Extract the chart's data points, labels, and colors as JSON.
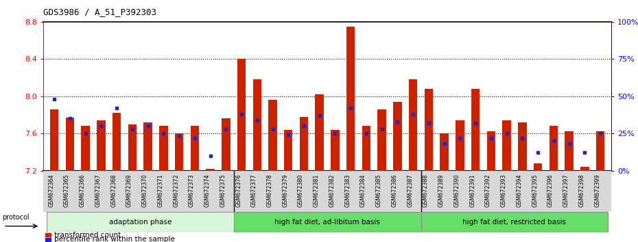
{
  "title": "GDS3986 / A_51_P392303",
  "samples": [
    "GSM672364",
    "GSM672365",
    "GSM672366",
    "GSM672367",
    "GSM672368",
    "GSM672369",
    "GSM672370",
    "GSM672371",
    "GSM672372",
    "GSM672373",
    "GSM672374",
    "GSM672375",
    "GSM672376",
    "GSM672377",
    "GSM672378",
    "GSM672379",
    "GSM672380",
    "GSM672381",
    "GSM672382",
    "GSM672383",
    "GSM672384",
    "GSM672385",
    "GSM672386",
    "GSM672387",
    "GSM672388",
    "GSM672389",
    "GSM672390",
    "GSM672391",
    "GSM672392",
    "GSM672393",
    "GSM672394",
    "GSM672395",
    "GSM672396",
    "GSM672397",
    "GSM672398",
    "GSM672399"
  ],
  "bar_values": [
    7.86,
    7.77,
    7.68,
    7.74,
    7.82,
    7.7,
    7.72,
    7.68,
    7.6,
    7.68,
    7.22,
    7.76,
    8.4,
    8.18,
    7.96,
    7.64,
    7.78,
    8.02,
    7.64,
    8.75,
    7.68,
    7.86,
    7.94,
    8.18,
    8.08,
    7.6,
    7.74,
    8.08,
    7.62,
    7.74,
    7.72,
    7.28,
    7.68,
    7.62,
    7.24,
    7.62
  ],
  "percentile_values": [
    48,
    35,
    25,
    30,
    42,
    28,
    30,
    25,
    23,
    22,
    10,
    28,
    38,
    34,
    28,
    24,
    30,
    37,
    25,
    42,
    25,
    28,
    33,
    38,
    32,
    18,
    22,
    32,
    22,
    25,
    22,
    12,
    20,
    18,
    12,
    25
  ],
  "groups": [
    {
      "label": "adaptation phase",
      "start": 0,
      "end": 12
    },
    {
      "label": "high fat diet, ad-libitum basis",
      "start": 12,
      "end": 24
    },
    {
      "label": "high fat diet, restricted basis",
      "start": 24,
      "end": 36
    }
  ],
  "group_colors": [
    "#d8f5d8",
    "#66dd66",
    "#66dd66"
  ],
  "ylim_left": [
    7.2,
    8.8
  ],
  "ylim_right": [
    0,
    100
  ],
  "yticks_left": [
    7.2,
    7.6,
    8.0,
    8.4,
    8.8
  ],
  "yticks_right": [
    0,
    25,
    50,
    75,
    100
  ],
  "ytick_labels_right": [
    "0%",
    "25%",
    "50%",
    "75%",
    "100%"
  ],
  "bar_color": "#cc2200",
  "dot_color": "#2222cc",
  "bar_width": 0.55,
  "baseline": 7.2,
  "legend_items": [
    {
      "color": "#cc2200",
      "label": "transformed count"
    },
    {
      "color": "#2222cc",
      "label": "percentile rank within the sample"
    }
  ]
}
